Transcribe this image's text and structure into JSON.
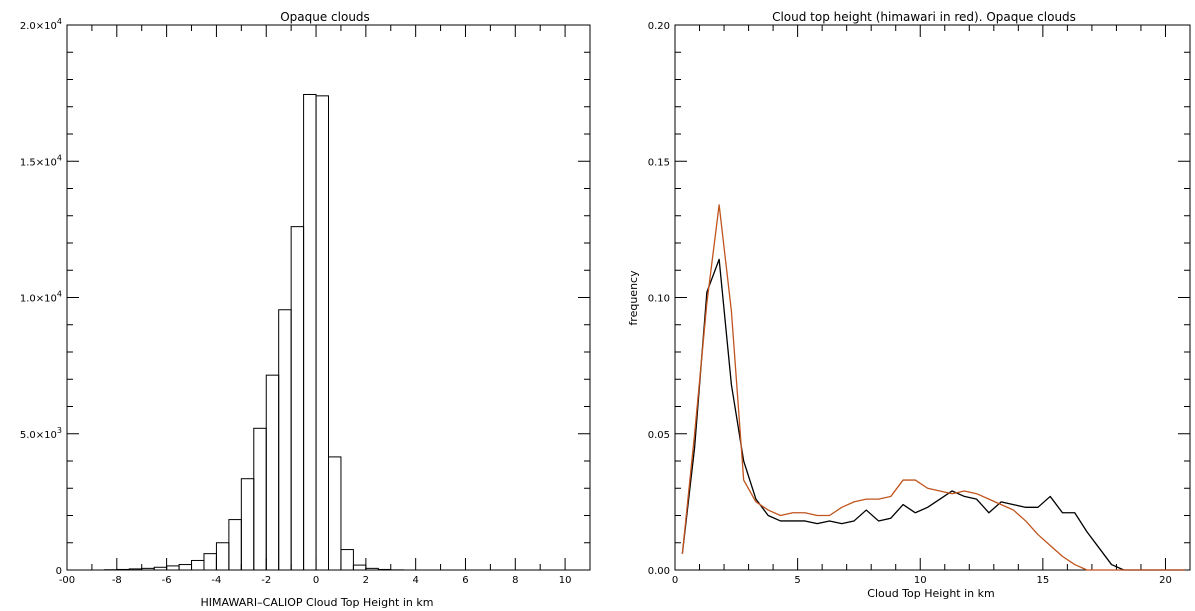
{
  "chart_data": [
    {
      "type": "bar",
      "title": "Opaque clouds",
      "xlabel": "HIMAWARI–CALIOP Cloud Top Height in km",
      "ylabel": "",
      "xlim": [
        -10,
        11
      ],
      "ylim": [
        0,
        20000
      ],
      "grid": false,
      "x_ticks": [
        "-00",
        "-8",
        "-6",
        "-4",
        "-2",
        "0",
        "2",
        "4",
        "6",
        "8",
        "10"
      ],
      "y_ticks": [
        {
          "value": 0,
          "label": "0",
          "exp": ""
        },
        {
          "value": 5000,
          "label": "5.0×10",
          "exp": "3"
        },
        {
          "value": 10000,
          "label": "1.0×10",
          "exp": "4"
        },
        {
          "value": 15000,
          "label": "1.5×10",
          "exp": "4"
        },
        {
          "value": 20000,
          "label": "2.0×10",
          "exp": "4"
        }
      ],
      "bin_width": 0.5,
      "bin_starts": [
        -8.5,
        -8.0,
        -7.5,
        -7.0,
        -6.5,
        -6.0,
        -5.5,
        -5.0,
        -4.5,
        -4.0,
        -3.5,
        -3.0,
        -2.5,
        -2.0,
        -1.5,
        -1.0,
        -0.5,
        0.0,
        0.5,
        1.0,
        1.5,
        2.0,
        2.5,
        3.0
      ],
      "values": [
        10,
        20,
        40,
        60,
        100,
        150,
        200,
        350,
        600,
        1000,
        1850,
        3350,
        5200,
        7150,
        9550,
        12600,
        17450,
        17400,
        4150,
        750,
        180,
        60,
        20,
        5
      ]
    },
    {
      "type": "line",
      "title": "Cloud top height (himawari in red). Opaque clouds",
      "xlabel": "Cloud Top Height in km",
      "ylabel": "frequency",
      "xlim": [
        0,
        21
      ],
      "ylim": [
        0,
        0.2
      ],
      "grid": false,
      "x_ticks": [
        "0",
        "5",
        "10",
        "15",
        "20"
      ],
      "y_ticks": [
        "0.00",
        "0.05",
        "0.10",
        "0.15",
        "0.20"
      ],
      "colors": {
        "black_series": "#000000",
        "red_series": "#c0541e"
      },
      "x": [
        0.3,
        0.8,
        1.3,
        1.8,
        2.3,
        2.8,
        3.3,
        3.8,
        4.3,
        4.8,
        5.3,
        5.8,
        6.3,
        6.8,
        7.3,
        7.8,
        8.3,
        8.8,
        9.3,
        9.8,
        10.3,
        10.8,
        11.3,
        11.8,
        12.3,
        12.8,
        13.3,
        13.8,
        14.3,
        14.8,
        15.3,
        15.8,
        16.3,
        16.8,
        17.3,
        17.8,
        18.3,
        18.8,
        19.3,
        19.8,
        20.3,
        20.8
      ],
      "series": [
        {
          "values": [
            0.006,
            0.045,
            0.102,
            0.114,
            0.068,
            0.04,
            0.026,
            0.02,
            0.018,
            0.018,
            0.018,
            0.017,
            0.018,
            0.017,
            0.018,
            0.022,
            0.018,
            0.019,
            0.024,
            0.021,
            0.023,
            0.026,
            0.029,
            0.027,
            0.026,
            0.021,
            0.025,
            0.024,
            0.023,
            0.023,
            0.027,
            0.021,
            0.021,
            0.014,
            0.008,
            0.002,
            0.0,
            0.0,
            0.0,
            0.0,
            0.0,
            0.0
          ]
        },
        {
          "values": [
            0.006,
            0.05,
            0.098,
            0.134,
            0.095,
            0.033,
            0.025,
            0.022,
            0.02,
            0.021,
            0.021,
            0.02,
            0.02,
            0.023,
            0.025,
            0.026,
            0.026,
            0.027,
            0.033,
            0.033,
            0.03,
            0.029,
            0.028,
            0.029,
            0.028,
            0.026,
            0.024,
            0.022,
            0.018,
            0.013,
            0.009,
            0.005,
            0.002,
            0.0,
            0.0,
            0.0,
            0.0,
            0.0,
            0.0,
            0.0,
            0.0,
            0.0
          ]
        }
      ]
    }
  ]
}
